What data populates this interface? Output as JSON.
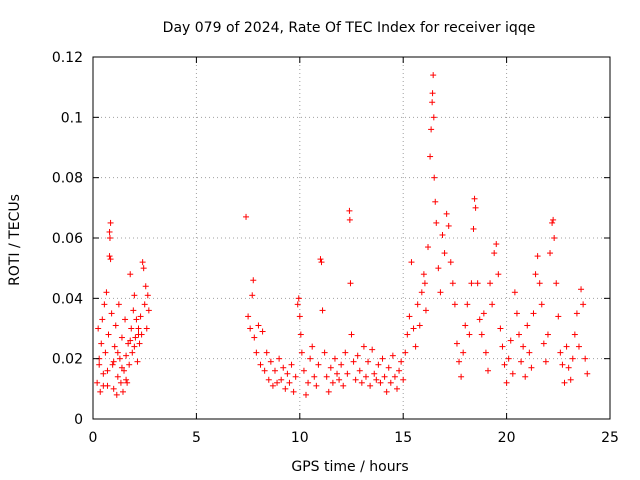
{
  "chart_data": {
    "type": "scatter",
    "title": "Day 079 of 2024, Rate Of TEC Index for receiver iqqe",
    "xlabel": "GPS time / hours",
    "ylabel": "ROTI / TECUs",
    "xlim": [
      0,
      25
    ],
    "ylim": [
      0,
      0.12
    ],
    "xticks": [
      0,
      5,
      10,
      15,
      20,
      25
    ],
    "xtick_labels": [
      "0",
      "5",
      "10",
      "15",
      "20",
      "25"
    ],
    "yticks": [
      0,
      0.02,
      0.04,
      0.06,
      0.08,
      0.1,
      0.12
    ],
    "ytick_labels": [
      "0",
      "0.02",
      "0.04",
      "0.06",
      "0.08",
      "0.1",
      "0.12"
    ],
    "grid": true,
    "marker": "+",
    "color": "#ff0000",
    "series": [
      {
        "name": "ROTI",
        "points": [
          [
            0.2,
            0.012
          ],
          [
            0.25,
            0.03
          ],
          [
            0.3,
            0.018
          ],
          [
            0.35,
            0.009
          ],
          [
            0.4,
            0.025
          ],
          [
            0.45,
            0.033
          ],
          [
            0.5,
            0.015
          ],
          [
            0.55,
            0.038
          ],
          [
            0.6,
            0.022
          ],
          [
            0.65,
            0.042
          ],
          [
            0.7,
            0.011
          ],
          [
            0.75,
            0.028
          ],
          [
            0.8,
            0.062
          ],
          [
            0.82,
            0.06
          ],
          [
            0.85,
            0.065
          ],
          [
            0.8,
            0.054
          ],
          [
            0.85,
            0.053
          ],
          [
            0.9,
            0.035
          ],
          [
            0.95,
            0.018
          ],
          [
            1.0,
            0.01
          ],
          [
            1.05,
            0.024
          ],
          [
            1.1,
            0.031
          ],
          [
            1.15,
            0.008
          ],
          [
            1.2,
            0.014
          ],
          [
            1.25,
            0.038
          ],
          [
            1.3,
            0.02
          ],
          [
            1.35,
            0.012
          ],
          [
            1.4,
            0.027
          ],
          [
            1.45,
            0.009
          ],
          [
            1.5,
            0.016
          ],
          [
            1.55,
            0.033
          ],
          [
            1.6,
            0.021
          ],
          [
            1.65,
            0.012
          ],
          [
            1.7,
            0.025
          ],
          [
            1.75,
            0.018
          ],
          [
            1.8,
            0.048
          ],
          [
            1.85,
            0.03
          ],
          [
            1.9,
            0.022
          ],
          [
            1.95,
            0.036
          ],
          [
            2.0,
            0.041
          ],
          [
            2.05,
            0.027
          ],
          [
            2.1,
            0.033
          ],
          [
            2.15,
            0.019
          ],
          [
            2.2,
            0.03
          ],
          [
            2.25,
            0.025
          ],
          [
            2.3,
            0.034
          ],
          [
            2.35,
            0.028
          ],
          [
            2.4,
            0.052
          ],
          [
            2.45,
            0.05
          ],
          [
            2.5,
            0.038
          ],
          [
            2.55,
            0.044
          ],
          [
            2.6,
            0.03
          ],
          [
            2.65,
            0.041
          ],
          [
            2.7,
            0.036
          ],
          [
            0.3,
            0.02
          ],
          [
            0.5,
            0.011
          ],
          [
            0.7,
            0.016
          ],
          [
            1.0,
            0.019
          ],
          [
            1.2,
            0.022
          ],
          [
            1.4,
            0.017
          ],
          [
            1.6,
            0.013
          ],
          [
            1.8,
            0.026
          ],
          [
            2.0,
            0.024
          ],
          [
            2.2,
            0.028
          ],
          [
            7.4,
            0.067
          ],
          [
            7.5,
            0.034
          ],
          [
            7.6,
            0.03
          ],
          [
            7.7,
            0.041
          ],
          [
            7.75,
            0.046
          ],
          [
            7.8,
            0.027
          ],
          [
            7.9,
            0.022
          ],
          [
            8.0,
            0.031
          ],
          [
            8.1,
            0.018
          ],
          [
            8.2,
            0.029
          ],
          [
            8.3,
            0.016
          ],
          [
            8.4,
            0.022
          ],
          [
            8.5,
            0.013
          ],
          [
            8.6,
            0.019
          ],
          [
            8.7,
            0.011
          ],
          [
            8.8,
            0.016
          ],
          [
            8.9,
            0.012
          ],
          [
            9.0,
            0.02
          ],
          [
            9.1,
            0.013
          ],
          [
            9.2,
            0.017
          ],
          [
            9.3,
            0.01
          ],
          [
            9.4,
            0.015
          ],
          [
            9.5,
            0.012
          ],
          [
            9.6,
            0.018
          ],
          [
            9.7,
            0.009
          ],
          [
            9.8,
            0.014
          ],
          [
            9.9,
            0.038
          ],
          [
            9.95,
            0.04
          ],
          [
            10.0,
            0.034
          ],
          [
            10.05,
            0.028
          ],
          [
            10.1,
            0.022
          ],
          [
            10.2,
            0.016
          ],
          [
            10.3,
            0.008
          ],
          [
            10.4,
            0.012
          ],
          [
            10.5,
            0.02
          ],
          [
            10.6,
            0.024
          ],
          [
            10.7,
            0.014
          ],
          [
            10.8,
            0.011
          ],
          [
            10.9,
            0.018
          ],
          [
            11.0,
            0.053
          ],
          [
            11.05,
            0.052
          ],
          [
            11.1,
            0.036
          ],
          [
            11.2,
            0.022
          ],
          [
            11.3,
            0.014
          ],
          [
            11.4,
            0.009
          ],
          [
            11.5,
            0.017
          ],
          [
            11.6,
            0.012
          ],
          [
            11.7,
            0.02
          ],
          [
            11.8,
            0.015
          ],
          [
            11.9,
            0.013
          ],
          [
            12.0,
            0.018
          ],
          [
            12.1,
            0.011
          ],
          [
            12.2,
            0.022
          ],
          [
            12.3,
            0.015
          ],
          [
            12.4,
            0.069
          ],
          [
            12.42,
            0.066
          ],
          [
            12.45,
            0.045
          ],
          [
            12.5,
            0.028
          ],
          [
            12.6,
            0.019
          ],
          [
            12.7,
            0.013
          ],
          [
            12.8,
            0.021
          ],
          [
            12.9,
            0.016
          ],
          [
            13.0,
            0.012
          ],
          [
            13.1,
            0.024
          ],
          [
            13.2,
            0.014
          ],
          [
            13.3,
            0.019
          ],
          [
            13.4,
            0.011
          ],
          [
            13.5,
            0.023
          ],
          [
            13.6,
            0.015
          ],
          [
            13.7,
            0.013
          ],
          [
            13.8,
            0.018
          ],
          [
            13.9,
            0.012
          ],
          [
            14.0,
            0.02
          ],
          [
            14.1,
            0.014
          ],
          [
            14.2,
            0.009
          ],
          [
            14.3,
            0.017
          ],
          [
            14.4,
            0.012
          ],
          [
            14.5,
            0.021
          ],
          [
            14.6,
            0.014
          ],
          [
            14.7,
            0.01
          ],
          [
            14.8,
            0.016
          ],
          [
            14.9,
            0.019
          ],
          [
            15.0,
            0.013
          ],
          [
            15.1,
            0.022
          ],
          [
            15.2,
            0.028
          ],
          [
            15.3,
            0.034
          ],
          [
            15.4,
            0.052
          ],
          [
            15.5,
            0.03
          ],
          [
            15.6,
            0.024
          ],
          [
            15.7,
            0.038
          ],
          [
            15.8,
            0.031
          ],
          [
            15.9,
            0.042
          ],
          [
            16.0,
            0.048
          ],
          [
            16.05,
            0.045
          ],
          [
            16.1,
            0.036
          ],
          [
            16.2,
            0.057
          ],
          [
            16.3,
            0.087
          ],
          [
            16.35,
            0.096
          ],
          [
            16.4,
            0.105
          ],
          [
            16.42,
            0.108
          ],
          [
            16.45,
            0.114
          ],
          [
            16.48,
            0.1
          ],
          [
            16.5,
            0.08
          ],
          [
            16.55,
            0.072
          ],
          [
            16.6,
            0.065
          ],
          [
            16.7,
            0.05
          ],
          [
            16.8,
            0.042
          ],
          [
            16.9,
            0.061
          ],
          [
            17.0,
            0.055
          ],
          [
            17.1,
            0.068
          ],
          [
            17.2,
            0.064
          ],
          [
            17.3,
            0.052
          ],
          [
            17.4,
            0.045
          ],
          [
            17.5,
            0.038
          ],
          [
            17.6,
            0.025
          ],
          [
            17.7,
            0.019
          ],
          [
            17.8,
            0.014
          ],
          [
            17.9,
            0.022
          ],
          [
            18.0,
            0.031
          ],
          [
            18.1,
            0.038
          ],
          [
            18.2,
            0.028
          ],
          [
            18.3,
            0.045
          ],
          [
            18.4,
            0.063
          ],
          [
            18.45,
            0.073
          ],
          [
            18.5,
            0.07
          ],
          [
            18.6,
            0.045
          ],
          [
            18.7,
            0.033
          ],
          [
            18.8,
            0.028
          ],
          [
            18.9,
            0.035
          ],
          [
            19.0,
            0.022
          ],
          [
            19.1,
            0.016
          ],
          [
            19.2,
            0.045
          ],
          [
            19.3,
            0.038
          ],
          [
            19.4,
            0.055
          ],
          [
            19.5,
            0.058
          ],
          [
            19.6,
            0.048
          ],
          [
            19.7,
            0.03
          ],
          [
            19.8,
            0.024
          ],
          [
            19.9,
            0.018
          ],
          [
            20.0,
            0.012
          ],
          [
            20.1,
            0.02
          ],
          [
            20.2,
            0.026
          ],
          [
            20.3,
            0.015
          ],
          [
            20.4,
            0.042
          ],
          [
            20.5,
            0.035
          ],
          [
            20.6,
            0.028
          ],
          [
            20.7,
            0.019
          ],
          [
            20.8,
            0.024
          ],
          [
            20.9,
            0.014
          ],
          [
            21.0,
            0.031
          ],
          [
            21.1,
            0.022
          ],
          [
            21.2,
            0.017
          ],
          [
            21.3,
            0.035
          ],
          [
            21.4,
            0.048
          ],
          [
            21.5,
            0.054
          ],
          [
            21.6,
            0.045
          ],
          [
            21.7,
            0.038
          ],
          [
            21.8,
            0.025
          ],
          [
            21.9,
            0.019
          ],
          [
            22.0,
            0.028
          ],
          [
            22.1,
            0.055
          ],
          [
            22.2,
            0.065
          ],
          [
            22.25,
            0.066
          ],
          [
            22.3,
            0.06
          ],
          [
            22.4,
            0.045
          ],
          [
            22.5,
            0.034
          ],
          [
            22.6,
            0.022
          ],
          [
            22.7,
            0.018
          ],
          [
            22.8,
            0.012
          ],
          [
            22.9,
            0.024
          ],
          [
            23.0,
            0.017
          ],
          [
            23.1,
            0.013
          ],
          [
            23.2,
            0.02
          ],
          [
            23.3,
            0.028
          ],
          [
            23.4,
            0.035
          ],
          [
            23.5,
            0.024
          ],
          [
            23.6,
            0.043
          ],
          [
            23.7,
            0.038
          ],
          [
            23.8,
            0.02
          ],
          [
            23.9,
            0.015
          ]
        ]
      }
    ]
  }
}
